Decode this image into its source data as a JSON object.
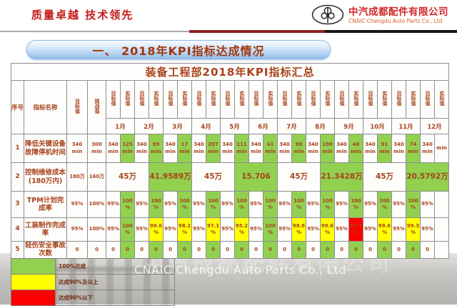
{
  "colors": {
    "g": "#92d050",
    "y": "#ffff00",
    "r": "#ff0000"
  },
  "header": {
    "slogan": "质量卓越 技术领先",
    "company_cn": "中汽成都配件有限公司",
    "company_en": "CNAIC Chengdu Auto Parts Co., Ltd"
  },
  "banner": {
    "title": "一、 2018年KPI指标达成情况"
  },
  "table": {
    "title": "装备工程部2018年KPI指标汇总",
    "col_headers": {
      "no": "序号",
      "name": "指标名称",
      "target": "目标值",
      "challenge": "挑战值",
      "month_target": "目标值",
      "month_actual": "实际值"
    },
    "months": [
      "1月",
      "2月",
      "3月",
      "4月",
      "5月",
      "6月",
      "7月",
      "8月",
      "9月",
      "10月",
      "11月",
      "12月"
    ],
    "rows": [
      {
        "no": "1",
        "name": "降低关键设备故障停机时间",
        "target": "340 min",
        "challenge": "300 min",
        "cells": [
          {
            "t": "340 min"
          },
          {
            "t": "125 min",
            "f": "g"
          },
          {
            "t": "340 min"
          },
          {
            "t": "99 min",
            "f": "g"
          },
          {
            "t": "340 min"
          },
          {
            "t": "17 min",
            "f": "g"
          },
          {
            "t": "340 min"
          },
          {
            "t": "287 min",
            "f": "g"
          },
          {
            "t": "340 min"
          },
          {
            "t": "111 min",
            "f": "g"
          },
          {
            "t": "340 min"
          },
          {
            "t": "41 min",
            "f": "g"
          },
          {
            "t": "340 min"
          },
          {
            "t": "90 min",
            "f": "g"
          },
          {
            "t": "340 min"
          },
          {
            "t": "190 min",
            "f": "g"
          },
          {
            "t": "340 min"
          },
          {
            "t": "40 min",
            "f": "g"
          },
          {
            "t": "340 min"
          },
          {
            "t": "91 min",
            "f": "g"
          },
          {
            "t": "340 min"
          },
          {
            "t": "74 min",
            "f": "g"
          },
          {
            "t": "340 min"
          },
          {
            "t": "min"
          }
        ]
      },
      {
        "no": "2",
        "name": "控制维修成本(180万内)",
        "target": "180万",
        "challenge": "160万",
        "cells": [
          {
            "t": "45万",
            "s": 3
          },
          {
            "t": "41.9589万",
            "s": 3,
            "f": "g"
          },
          {
            "t": "45万",
            "s": 3
          },
          {
            "t": "15.706",
            "s": 3,
            "f": "g"
          },
          {
            "t": "45万",
            "s": 3
          },
          {
            "t": "21.3428万",
            "s": 3,
            "f": "g"
          },
          {
            "t": "45万",
            "s": 3
          },
          {
            "t": "20.5792万",
            "s": 3,
            "f": "g"
          }
        ]
      },
      {
        "no": "3",
        "name": "TPM计划完成率",
        "target": "95%",
        "challenge": "100%",
        "cells": [
          {
            "t": "95%"
          },
          {
            "t": "100%",
            "f": "g"
          },
          {
            "t": "95%"
          },
          {
            "t": "100%",
            "f": "g"
          },
          {
            "t": "95%"
          },
          {
            "t": "100%",
            "f": "g"
          },
          {
            "t": "95%"
          },
          {
            "t": "100%",
            "f": "g"
          },
          {
            "t": "95%"
          },
          {
            "t": "100%",
            "f": "g"
          },
          {
            "t": "95%"
          },
          {
            "t": "100%",
            "f": "g"
          },
          {
            "t": "95%"
          },
          {
            "t": "100%",
            "f": "g"
          },
          {
            "t": "95%"
          },
          {
            "t": "100%",
            "f": "g"
          },
          {
            "t": "95%"
          },
          {
            "t": "100%",
            "f": "g"
          },
          {
            "t": "95%"
          },
          {
            "t": "100%",
            "f": "g"
          },
          {
            "t": "95%"
          },
          {
            "t": "100%",
            "f": "g"
          },
          {
            "t": "95%"
          },
          {
            "t": ""
          }
        ]
      },
      {
        "no": "4",
        "name": "工装制作完成率",
        "target": "95%",
        "challenge": "100%",
        "cells": [
          {
            "t": "95%"
          },
          {
            "t": "100%",
            "f": "g"
          },
          {
            "t": "95%"
          },
          {
            "t": "99.6%",
            "f": "y"
          },
          {
            "t": "95%"
          },
          {
            "t": "98.2%",
            "f": "y"
          },
          {
            "t": "95%"
          },
          {
            "t": "97.1%",
            "f": "y"
          },
          {
            "t": "95%"
          },
          {
            "t": "95.2%",
            "f": "y"
          },
          {
            "t": "95%"
          },
          {
            "t": "100%",
            "f": "g"
          },
          {
            "t": "95%"
          },
          {
            "t": "98.6%",
            "f": "y"
          },
          {
            "t": "95%"
          },
          {
            "t": "99.6%",
            "f": "y"
          },
          {
            "t": "95%"
          },
          {
            "t": "67.7%",
            "f": "r"
          },
          {
            "t": "95%"
          },
          {
            "t": "99.6%",
            "f": "y"
          },
          {
            "t": "95%"
          },
          {
            "t": "99.3%",
            "f": "y"
          },
          {
            "t": "95%"
          },
          {
            "t": ""
          }
        ]
      },
      {
        "no": "5",
        "name": "轻伤安全事故次数",
        "target": "0",
        "challenge": "0",
        "cells": [
          {
            "t": "0"
          },
          {
            "t": "0",
            "f": "g"
          },
          {
            "t": "0"
          },
          {
            "t": "0",
            "f": "g"
          },
          {
            "t": "0"
          },
          {
            "t": "0",
            "f": "g"
          },
          {
            "t": "0"
          },
          {
            "t": "0",
            "f": "g"
          },
          {
            "t": "0"
          },
          {
            "t": "0",
            "f": "g"
          },
          {
            "t": "0"
          },
          {
            "t": "0",
            "f": "g"
          },
          {
            "t": "0"
          },
          {
            "t": "0",
            "f": "g"
          },
          {
            "t": "0"
          },
          {
            "t": "0",
            "f": "g"
          },
          {
            "t": "0"
          },
          {
            "t": "0",
            "f": "g"
          },
          {
            "t": "0"
          },
          {
            "t": "0",
            "f": "g"
          },
          {
            "t": "0"
          },
          {
            "t": "0",
            "f": "g"
          },
          {
            "t": "0"
          },
          {
            "t": ""
          }
        ]
      }
    ]
  },
  "legend": {
    "items": [
      {
        "color": "#92d050",
        "label": "100%达成"
      },
      {
        "color": "#ffff00",
        "label": "达成90%及以上"
      },
      {
        "color": "#ff0000",
        "label": "达成90%以下"
      }
    ]
  },
  "footer": {
    "watermark_en": "CNAIC Chengdu Auto Parts Co., Ltd",
    "watermark_cn": "中汽成都配件有限公司"
  }
}
